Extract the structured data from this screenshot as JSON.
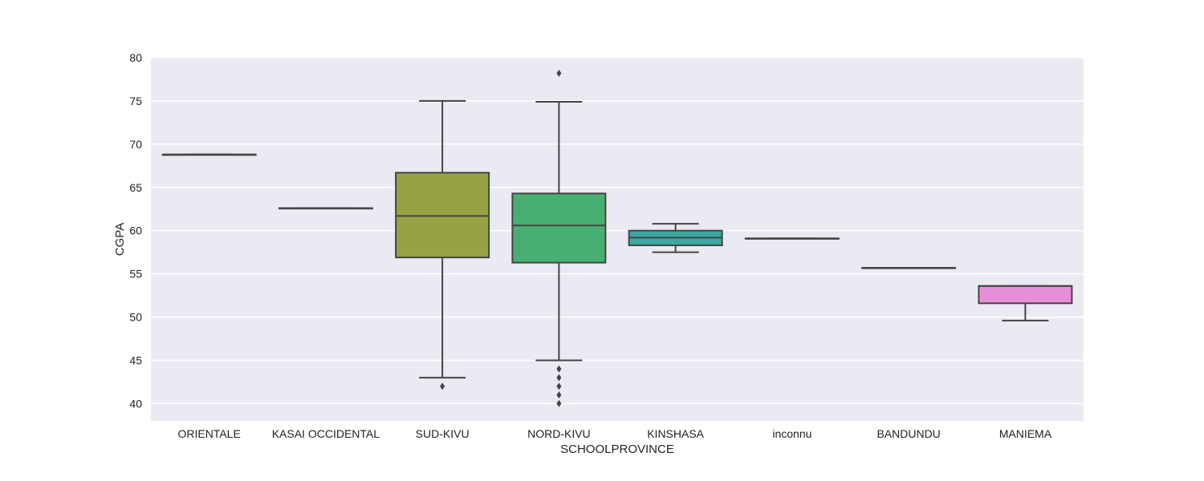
{
  "chart_data": {
    "type": "box",
    "xlabel": "SCHOOLPROVINCE",
    "ylabel": "CGPA",
    "ylim": [
      38,
      80
    ],
    "yticks": [
      40,
      45,
      50,
      55,
      60,
      65,
      70,
      75,
      80
    ],
    "grid": true,
    "categories": [
      "ORIENTALE",
      "KASAI OCCIDENTAL",
      "SUD-KIVU",
      "NORD-KIVU",
      "KINSHASA",
      "inconnu",
      "BANDUNDU",
      "MANIEMA"
    ],
    "boxes": [
      {
        "category": "ORIENTALE",
        "color": "#ed8c8c",
        "whisker_low": 68.8,
        "q1": 68.8,
        "median": 68.8,
        "q3": 68.8,
        "whisker_high": 68.8,
        "outliers": []
      },
      {
        "category": "KASAI OCCIDENTAL",
        "color": "#d4a84a",
        "whisker_low": 62.6,
        "q1": 62.6,
        "median": 62.6,
        "q3": 62.6,
        "whisker_high": 62.6,
        "outliers": []
      },
      {
        "category": "SUD-KIVU",
        "color": "#97a244",
        "whisker_low": 43.0,
        "q1": 56.9,
        "median": 61.7,
        "q3": 66.7,
        "whisker_high": 75.0,
        "outliers": [
          42.0
        ]
      },
      {
        "category": "NORD-KIVU",
        "color": "#48af72",
        "whisker_low": 45.0,
        "q1": 56.3,
        "median": 60.6,
        "q3": 64.3,
        "whisker_high": 74.9,
        "outliers": [
          78.2,
          44.0,
          43.0,
          42.0,
          41.0,
          40.0
        ]
      },
      {
        "category": "KINSHASA",
        "color": "#3ba9a3",
        "whisker_low": 57.5,
        "q1": 58.3,
        "median": 59.2,
        "q3": 60.0,
        "whisker_high": 60.8,
        "outliers": []
      },
      {
        "category": "inconnu",
        "color": "#5ea8d8",
        "whisker_low": 59.1,
        "q1": 59.1,
        "median": 59.1,
        "q3": 59.1,
        "whisker_high": 59.1,
        "outliers": []
      },
      {
        "category": "BANDUNDU",
        "color": "#9e9ee8",
        "whisker_low": 55.7,
        "q1": 55.7,
        "median": 55.7,
        "q3": 55.7,
        "whisker_high": 55.7,
        "outliers": []
      },
      {
        "category": "MANIEMA",
        "color": "#e88ed8",
        "whisker_low": 49.6,
        "q1": 51.6,
        "median": 53.6,
        "q3": 53.6,
        "whisker_high": 53.6,
        "outliers": []
      }
    ]
  },
  "style": {
    "plot_background": "#eaeaf2",
    "grid_color": "#ffffff",
    "line_color": "#444444"
  }
}
